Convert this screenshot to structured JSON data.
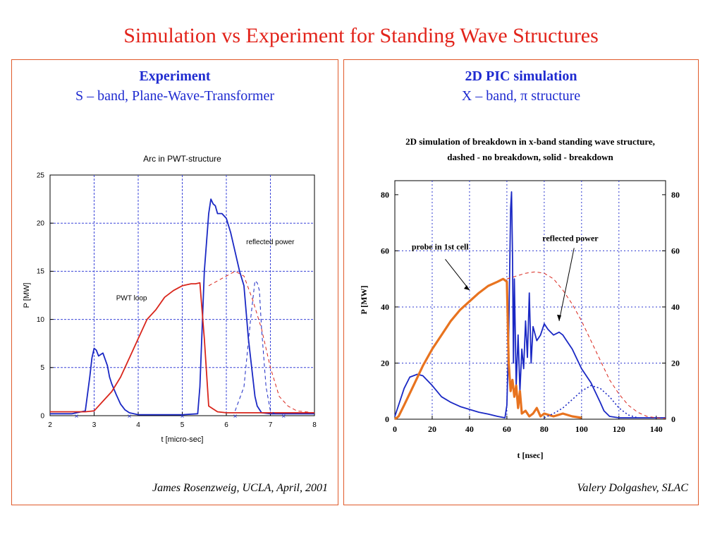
{
  "slide": {
    "title": "Simulation vs Experiment  for Standing Wave Structures"
  },
  "left_panel": {
    "heading": "Experiment",
    "subheading": "S – band, Plane-Wave-Transformer",
    "credit": "James Rosenzweig, UCLA, April, 2001"
  },
  "right_panel": {
    "heading": "2D PIC simulation",
    "subheading": "X – band, π structure",
    "credit": "Valery Dolgashev, SLAC"
  },
  "colors": {
    "title": "#e2231a",
    "heading": "#1f2bd0",
    "border": "#e05a2a",
    "blue": "#1a28c4",
    "red": "#d9261c",
    "orange": "#e8731f",
    "dashed_red": "#c0392b"
  },
  "chart_data": [
    {
      "type": "line",
      "title": "Arc in PWT-structure",
      "xlabel": "t  [micro-sec]",
      "ylabel": "P [MW]",
      "xlim": [
        2,
        8
      ],
      "ylim": [
        0,
        25
      ],
      "xticks": [
        2,
        3,
        4,
        5,
        6,
        7,
        8
      ],
      "yticks": [
        0,
        5,
        10,
        15,
        20,
        25
      ],
      "grid": true,
      "annotations": [
        "PWT loop",
        "reflected power"
      ],
      "series": [
        {
          "style": "solid",
          "color": "blue",
          "x": [
            2.0,
            2.5,
            2.8,
            2.9,
            2.95,
            3.0,
            3.05,
            3.1,
            3.2,
            3.3,
            3.35,
            3.4,
            3.5,
            3.6,
            3.7,
            3.8,
            3.9,
            4.0,
            4.5,
            5.0,
            5.35,
            5.4,
            5.5,
            5.6,
            5.65,
            5.7,
            5.75,
            5.8,
            5.9,
            6.0,
            6.1,
            6.2,
            6.3,
            6.4,
            6.5,
            6.6,
            6.65,
            6.7,
            6.8,
            7.0,
            8.0
          ],
          "y": [
            0.2,
            0.2,
            0.5,
            4,
            6,
            7,
            6.8,
            6.2,
            6.5,
            5.2,
            4,
            3.3,
            2.2,
            1.2,
            0.6,
            0.3,
            0.2,
            0.1,
            0.1,
            0.1,
            0.2,
            3,
            15,
            21,
            22.5,
            22,
            21.8,
            21,
            21,
            20.5,
            19,
            17,
            15,
            13.5,
            8,
            4,
            2,
            1,
            0.3,
            0.2,
            0.2
          ]
        },
        {
          "style": "solid",
          "color": "red",
          "x": [
            2.0,
            2.8,
            3.0,
            3.2,
            3.4,
            3.6,
            3.8,
            4.0,
            4.2,
            4.4,
            4.6,
            4.8,
            5.0,
            5.2,
            5.3,
            5.4,
            5.5,
            5.6,
            5.8,
            6.0,
            7.0,
            8.0
          ],
          "y": [
            0.4,
            0.4,
            0.5,
            1.5,
            2.5,
            4,
            6,
            8,
            10,
            11,
            12.3,
            13,
            13.5,
            13.7,
            13.7,
            13.8,
            8,
            1,
            0.4,
            0.3,
            0.3,
            0.3
          ]
        },
        {
          "style": "dashed",
          "color": "red",
          "x": [
            5.6,
            5.8,
            6.0,
            6.2,
            6.4,
            6.6,
            6.8,
            7.0,
            7.2,
            7.4,
            7.6,
            8.0
          ],
          "y": [
            13.5,
            14,
            14.5,
            15,
            14.5,
            12,
            9,
            5,
            2,
            1,
            0.5,
            0.3
          ]
        },
        {
          "style": "dashed",
          "color": "blue",
          "x": [
            6.2,
            6.4,
            6.55,
            6.65,
            6.7,
            6.75,
            6.8,
            6.9,
            7.0,
            7.1
          ],
          "y": [
            0.5,
            3,
            10,
            14,
            13.8,
            13,
            9,
            3,
            0.5,
            0.2
          ]
        }
      ]
    },
    {
      "type": "line",
      "title": "2D simulation of breakdown in x-band standing wave structure,",
      "subtitle": "dashed - no breakdown, solid - breakdown",
      "xlabel": "t [nsec]",
      "ylabel": "P [MW]",
      "xlim": [
        0,
        145
      ],
      "ylim": [
        0,
        85
      ],
      "xticks": [
        0,
        20,
        40,
        60,
        80,
        100,
        120,
        140
      ],
      "yticks": [
        0,
        20,
        40,
        60,
        80
      ],
      "grid": true,
      "annotations": [
        "probe in 1st cell",
        "reflected power"
      ],
      "series": [
        {
          "style": "solid",
          "color": "blue",
          "x": [
            0,
            2,
            5,
            8,
            12,
            15,
            20,
            25,
            30,
            35,
            40,
            45,
            50,
            55,
            59,
            60,
            61,
            62,
            62.5,
            63,
            63.5,
            64,
            65,
            66,
            67,
            68,
            69,
            70,
            71,
            72,
            73,
            74,
            76,
            78,
            80,
            82,
            85,
            88,
            90,
            92,
            95,
            100,
            105,
            110,
            112,
            115,
            120,
            145
          ],
          "y": [
            1,
            5,
            11,
            15,
            16,
            15.5,
            12,
            8,
            6,
            4.5,
            3.5,
            2.5,
            1.8,
            1,
            0.5,
            5,
            30,
            75,
            81,
            60,
            20,
            50,
            12,
            30,
            10,
            25,
            18,
            35,
            22,
            45,
            20,
            33,
            28,
            30,
            34,
            32,
            30,
            31,
            30,
            28,
            25,
            18,
            13,
            6,
            3,
            1,
            0.5,
            0.5
          ]
        },
        {
          "style": "solid",
          "color": "orange",
          "x": [
            0,
            2,
            5,
            10,
            15,
            20,
            25,
            30,
            35,
            40,
            45,
            50,
            55,
            58,
            60,
            61,
            62,
            63,
            64,
            65,
            66,
            67,
            68,
            70,
            72,
            74,
            76,
            78,
            80,
            85,
            90,
            95,
            100
          ],
          "y": [
            0,
            1,
            5,
            12,
            19,
            25,
            30,
            35,
            39,
            42,
            45,
            47.5,
            49,
            50,
            49,
            20,
            10,
            14,
            8,
            12,
            4,
            10,
            2,
            3,
            1,
            2,
            4,
            1,
            2,
            1,
            2,
            1,
            0.5
          ]
        },
        {
          "style": "dashed",
          "color": "red",
          "x": [
            60,
            65,
            70,
            75,
            80,
            85,
            90,
            95,
            100,
            105,
            110,
            115,
            120,
            125,
            130,
            135,
            140,
            145
          ],
          "y": [
            50,
            51,
            52,
            52.5,
            52,
            50,
            46,
            41,
            35,
            28,
            21,
            14,
            9,
            5,
            2.5,
            1,
            0.5,
            0.3
          ]
        },
        {
          "style": "dotted",
          "color": "blue",
          "x": [
            80,
            85,
            90,
            95,
            100,
            105,
            110,
            115,
            120,
            125,
            130
          ],
          "y": [
            0.5,
            2,
            4,
            7,
            10,
            12,
            11,
            8,
            4,
            1.5,
            0.5
          ]
        }
      ]
    }
  ]
}
